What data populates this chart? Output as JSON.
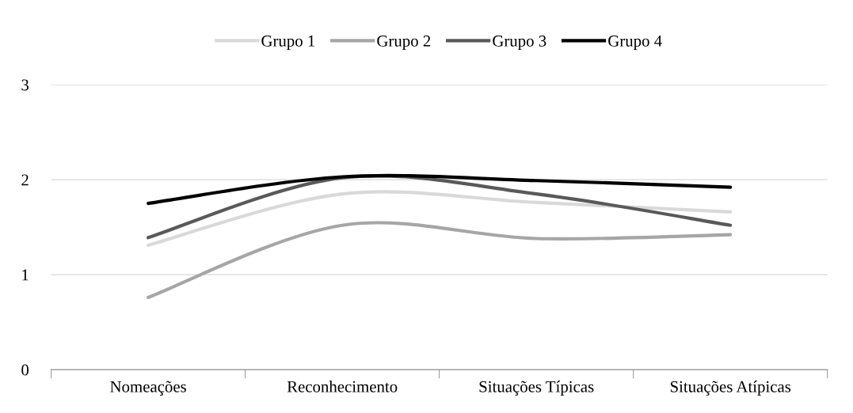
{
  "chart_data": {
    "type": "line",
    "categories": [
      "Nomeações",
      "Reconhecimento",
      "Situações Típicas",
      "Situações Atípicas"
    ],
    "series": [
      {
        "name": "Grupo 1",
        "color": "#d9d9d9",
        "values": [
          1.31,
          1.85,
          1.76,
          1.66
        ]
      },
      {
        "name": "Grupo 2",
        "color": "#a6a6a6",
        "values": [
          0.76,
          1.52,
          1.38,
          1.42
        ]
      },
      {
        "name": "Grupo 3",
        "color": "#595959",
        "values": [
          1.39,
          2.02,
          1.85,
          1.52
        ]
      },
      {
        "name": "Grupo 4",
        "color": "#000000",
        "values": [
          1.75,
          2.03,
          1.99,
          1.92
        ]
      }
    ],
    "ylim": [
      0,
      3
    ],
    "yticks": [
      0,
      1,
      2,
      3
    ],
    "grid": "y",
    "legend": "top",
    "marker": "none",
    "line_style": "solid"
  }
}
